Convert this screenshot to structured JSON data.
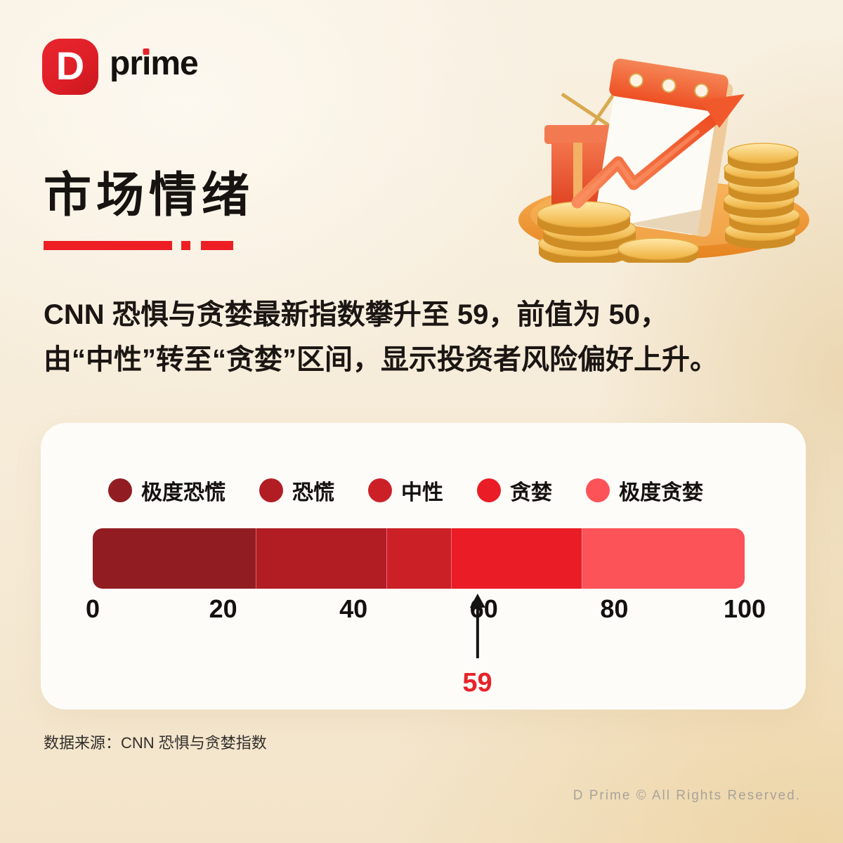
{
  "logo": {
    "mark_letter": "D",
    "brand": "prime"
  },
  "header": {
    "title": "市场情绪"
  },
  "intro": {
    "line1": "CNN 恐惧与贪婪最新指数攀升至 59，前值为 50，",
    "line2": "由“中性”转至“贪婪”区间，显示投资者风险偏好上升。"
  },
  "chart_data": {
    "type": "bar",
    "orientation": "horizontal",
    "xlim": [
      0,
      100
    ],
    "axis_ticks": [
      0,
      20,
      40,
      60,
      80,
      100
    ],
    "grid": false,
    "legend_position": "top",
    "segments": [
      {
        "label": "极度恐慌",
        "min": 0,
        "max": 25,
        "color": "#911D23"
      },
      {
        "label": "恐慌",
        "min": 25,
        "max": 45,
        "color": "#B21D24"
      },
      {
        "label": "中性",
        "min": 45,
        "max": 55,
        "color": "#CC2027"
      },
      {
        "label": "贪婪",
        "min": 55,
        "max": 75,
        "color": "#EA1C26"
      },
      {
        "label": "极度贪婪",
        "min": 75,
        "max": 100,
        "color": "#FB5358"
      }
    ],
    "marker": {
      "value": 59,
      "label": "59"
    }
  },
  "source": {
    "label": "数据来源：CNN 恐惧与贪婪指数"
  },
  "footer": {
    "copyright": "D Prime © All Rights Reserved."
  },
  "colors": {
    "brand_red": "#E2242B",
    "divider_red": "#ED1F24",
    "marker_label_red": "#E8232A",
    "title_black": "#171310"
  }
}
